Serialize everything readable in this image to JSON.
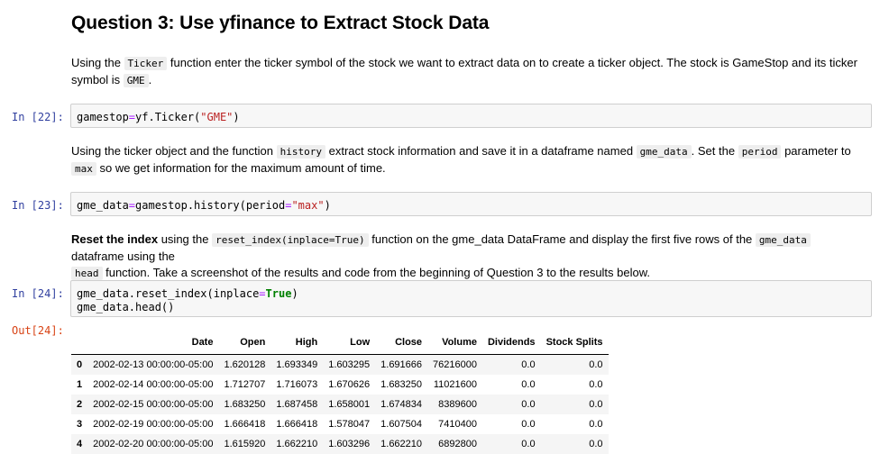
{
  "heading": "Question 3: Use yfinance to Extract Stock Data",
  "md1": {
    "t1": "Using the ",
    "c1": "Ticker",
    "t2": " function enter the ticker symbol of the stock we want to extract data on to create a ticker object. The stock is GameStop and its ticker symbol is ",
    "c2": "GME",
    "t3": "."
  },
  "cell22": {
    "prompt": "In [22]:",
    "v1": "gamestop",
    "eq": "=",
    "v2": "yf.Ticker(",
    "str": "\"GME\"",
    "close": ")"
  },
  "md2": {
    "t1": "Using the ticker object and the function ",
    "c1": "history",
    "t2": " extract stock information and save it in a dataframe named ",
    "c2": "gme_data",
    "t3": ". Set the ",
    "c3": "period",
    "t4": " parameter to ",
    "c4": "max",
    "t5": " so we get information for the maximum amount of time."
  },
  "cell23": {
    "prompt": "In [23]:",
    "v1": "gme_data",
    "eq": "=",
    "v2": "gamestop.history(period",
    "eq2": "=",
    "str": "\"max\"",
    "close": ")"
  },
  "md3": {
    "b1": "Reset the index",
    "t1": " using the ",
    "c1": "reset_index(inplace=True)",
    "t2": " function on the gme_data DataFrame and display the first five rows of the ",
    "c2": "gme_data",
    "t3": " dataframe using the ",
    "c3": "head",
    "t4": " function. Take a screenshot of the results and code from the beginning of Question 3 to the results below."
  },
  "cell24": {
    "prompt": "In [24]:",
    "l1a": "gme_data.reset_index(inplace",
    "l1eq": "=",
    "l1kw": "True",
    "l1close": ")",
    "l2": "gme_data.head()"
  },
  "out24": {
    "prompt": "Out[24]:",
    "columns": [
      "",
      "Date",
      "Open",
      "High",
      "Low",
      "Close",
      "Volume",
      "Dividends",
      "Stock Splits"
    ],
    "rows": [
      [
        "0",
        "2002-02-13 00:00:00-05:00",
        "1.620128",
        "1.693349",
        "1.603295",
        "1.691666",
        "76216000",
        "0.0",
        "0.0"
      ],
      [
        "1",
        "2002-02-14 00:00:00-05:00",
        "1.712707",
        "1.716073",
        "1.670626",
        "1.683250",
        "11021600",
        "0.0",
        "0.0"
      ],
      [
        "2",
        "2002-02-15 00:00:00-05:00",
        "1.683250",
        "1.687458",
        "1.658001",
        "1.674834",
        "8389600",
        "0.0",
        "0.0"
      ],
      [
        "3",
        "2002-02-19 00:00:00-05:00",
        "1.666418",
        "1.666418",
        "1.578047",
        "1.607504",
        "7410400",
        "0.0",
        "0.0"
      ],
      [
        "4",
        "2002-02-20 00:00:00-05:00",
        "1.615920",
        "1.662210",
        "1.603296",
        "1.662210",
        "6892800",
        "0.0",
        "0.0"
      ]
    ]
  }
}
